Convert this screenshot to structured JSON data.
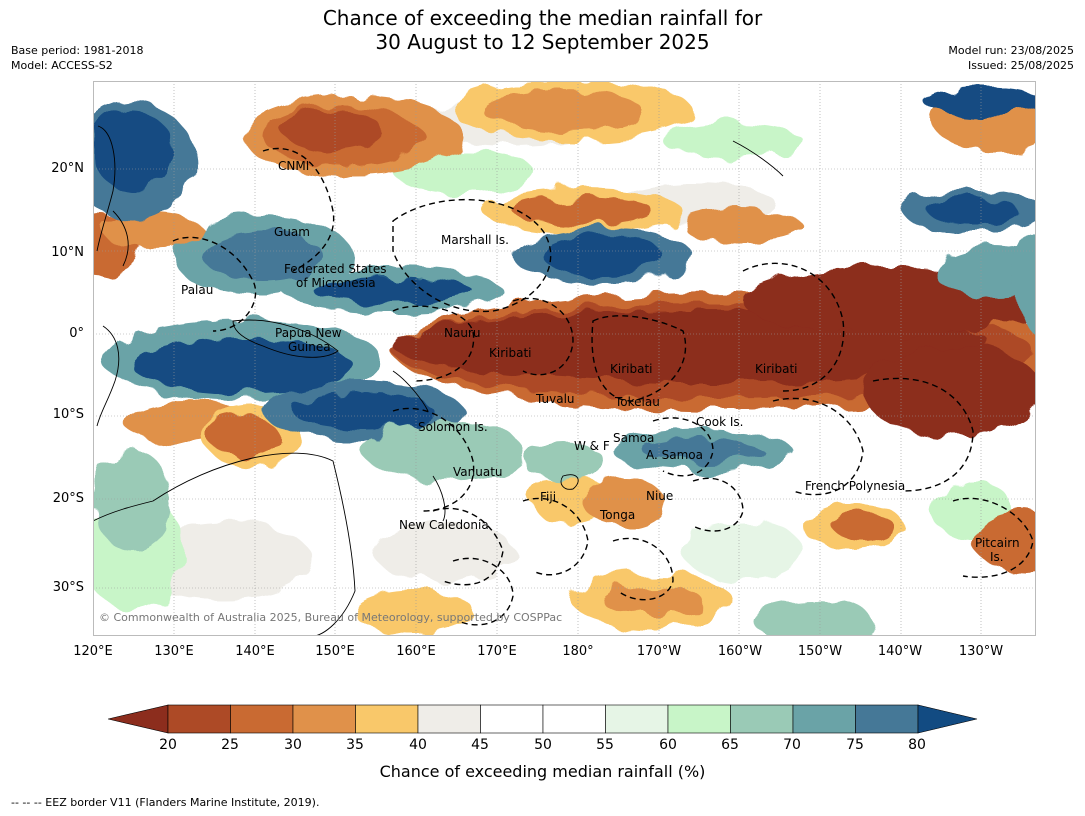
{
  "title": {
    "line1": "Chance of exceeding the median rainfall for",
    "line2": "30 August to 12 September 2025"
  },
  "meta_left": {
    "base_period": "Base period: 1981-2018",
    "model": "Model: ACCESS-S2"
  },
  "meta_right": {
    "model_run": "Model run: 23/08/2025",
    "issued": "Issued: 25/08/2025"
  },
  "map": {
    "lon_ticks": [
      "120°E",
      "130°E",
      "140°E",
      "150°E",
      "160°E",
      "170°E",
      "180°",
      "170°W",
      "160°W",
      "150°W",
      "140°W",
      "130°W"
    ],
    "lat_ticks": [
      "20°N",
      "10°N",
      "0°",
      "10°S",
      "20°S",
      "30°S"
    ],
    "regions": [
      {
        "name": "CNMI"
      },
      {
        "name": "Guam"
      },
      {
        "name": "Marshall Is."
      },
      {
        "name": "Federated States"
      },
      {
        "name": "of Micronesia"
      },
      {
        "name": "Palau"
      },
      {
        "name": "Papua New"
      },
      {
        "name": "Guinea"
      },
      {
        "name": "Nauru"
      },
      {
        "name": "Kiribati"
      },
      {
        "name": "Kiribati"
      },
      {
        "name": "Kiribati"
      },
      {
        "name": "Tuvalu"
      },
      {
        "name": "Tokelau"
      },
      {
        "name": "Cook Is."
      },
      {
        "name": "Solomon Is."
      },
      {
        "name": "Samoa"
      },
      {
        "name": "W & F"
      },
      {
        "name": "A. Samoa"
      },
      {
        "name": "Vanuatu"
      },
      {
        "name": "Fiji"
      },
      {
        "name": "Niue"
      },
      {
        "name": "Tonga"
      },
      {
        "name": "French Polynesia"
      },
      {
        "name": "New Caledonia"
      },
      {
        "name": "Pitcairn"
      },
      {
        "name": "Is."
      }
    ],
    "copyright": "© Commonwealth of Australia 2025, Bureau of Meteorology, supported by COSPPac"
  },
  "colorbar": {
    "ticks": [
      "20",
      "25",
      "30",
      "35",
      "40",
      "45",
      "50",
      "55",
      "60",
      "65",
      "70",
      "75",
      "80"
    ],
    "colors": [
      "#8c2d1d",
      "#ad4a26",
      "#c96a32",
      "#e0914a",
      "#f9c86a",
      "#efede8",
      "#ffffff",
      "#ffffff",
      "#e6f5e6",
      "#c8f5c8",
      "#9acab6",
      "#6aa3a7",
      "#457897",
      "#124b82"
    ],
    "label": "Chance of exceeding median rainfall (%)"
  },
  "footer": "--  --  -- EEZ border V11 (Flanders Marine Institute, 2019)."
}
